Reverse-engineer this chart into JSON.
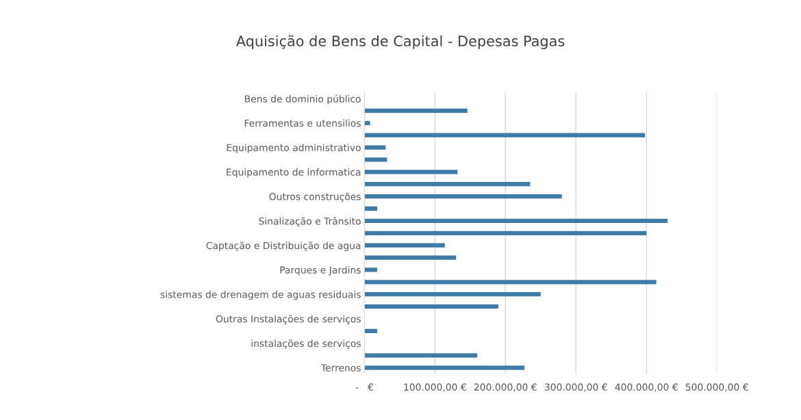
{
  "chart_data": {
    "type": "bar",
    "orientation": "horizontal",
    "title": "Aquisição de Bens de Capital - Depesas Pagas",
    "categories": [
      "Bens de dominio público",
      null,
      "Ferramentas e utensilios",
      null,
      "Equipamento administrativo",
      null,
      "Equipamento de informatica",
      null,
      "Outros construções",
      null,
      "Sinalização e Trânsito",
      null,
      "Captação e Distribuição de agua",
      null,
      "Parques e Jardins",
      null,
      "sistemas de drenagem de aguas residuais",
      null,
      "Outras Instalações de serviços",
      null,
      "instalações de serviços",
      null,
      "Terrenos"
    ],
    "values": [
      null,
      146000,
      8000,
      398000,
      30000,
      32000,
      132000,
      235000,
      280000,
      18000,
      430000,
      400000,
      114000,
      130000,
      18000,
      414000,
      250000,
      190000,
      0,
      18000,
      null,
      160000,
      227000
    ],
    "color": "#3f7ba6",
    "xlim": [
      0,
      500000
    ],
    "xticks": [
      {
        "value": 0,
        "label": "-   €"
      },
      {
        "value": 100000,
        "label": "100.000,00 €"
      },
      {
        "value": 200000,
        "label": "200.000,00 €"
      },
      {
        "value": 300000,
        "label": "300.000,00 €"
      },
      {
        "value": 400000,
        "label": "400.000,00 €"
      },
      {
        "value": 500000,
        "label": "500.000,00 €"
      }
    ],
    "grid": "x",
    "legend": false
  }
}
